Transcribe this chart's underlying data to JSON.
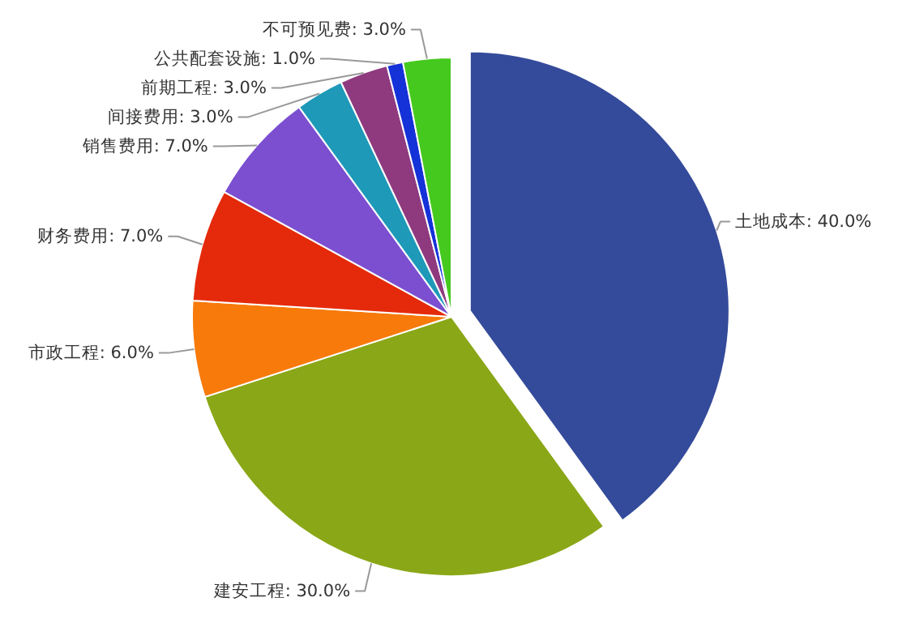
{
  "chart_data": {
    "type": "pie",
    "categories": [
      "土地成本",
      "建安工程",
      "市政工程",
      "财务费用",
      "销售费用",
      "间接费用",
      "前期工程",
      "公共配套设施",
      "不可预见费"
    ],
    "values": [
      40,
      30,
      6,
      7,
      7,
      3,
      3,
      1,
      3
    ],
    "colors": [
      "#344a9a",
      "#8aa717",
      "#f77a0b",
      "#e42a0a",
      "#7b4fd0",
      "#1e99b8",
      "#8f3a7f",
      "#1531d8",
      "#45c91e"
    ],
    "value_labels": [
      "40.0%",
      "30.0%",
      "6.0%",
      "7.0%",
      "7.0%",
      "3.0%",
      "3.0%",
      "1.0%",
      "3.0%"
    ]
  }
}
